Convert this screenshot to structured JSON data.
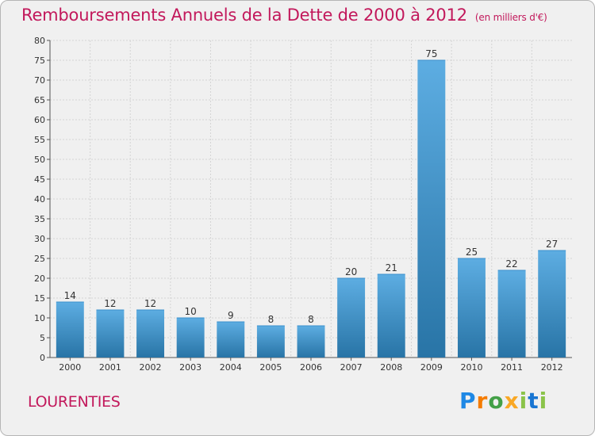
{
  "title": "Remboursements Annuels de la Dette de 2000 à 2012",
  "unit": "(en milliers d'€)",
  "commune": "LOURENTIES",
  "logo": {
    "p": "P",
    "r": "r",
    "o": "o",
    "x": "x",
    "i": "i",
    "t": "t",
    "i2": "i"
  },
  "colors": {
    "title": "#c2185b",
    "bar_top": "#5dade2",
    "bar_bottom": "#2874a6"
  },
  "chart_data": {
    "type": "bar",
    "categories": [
      "2000",
      "2001",
      "2002",
      "2003",
      "2004",
      "2005",
      "2006",
      "2007",
      "2008",
      "2009",
      "2010",
      "2011",
      "2012"
    ],
    "values": [
      14,
      12,
      12,
      10,
      9,
      8,
      8,
      20,
      21,
      75,
      25,
      22,
      27
    ],
    "ylim": [
      0,
      80
    ],
    "yticks": [
      0,
      5,
      10,
      15,
      20,
      25,
      30,
      35,
      40,
      45,
      50,
      55,
      60,
      65,
      70,
      75,
      80
    ],
    "grid": true,
    "data_labels": true
  }
}
